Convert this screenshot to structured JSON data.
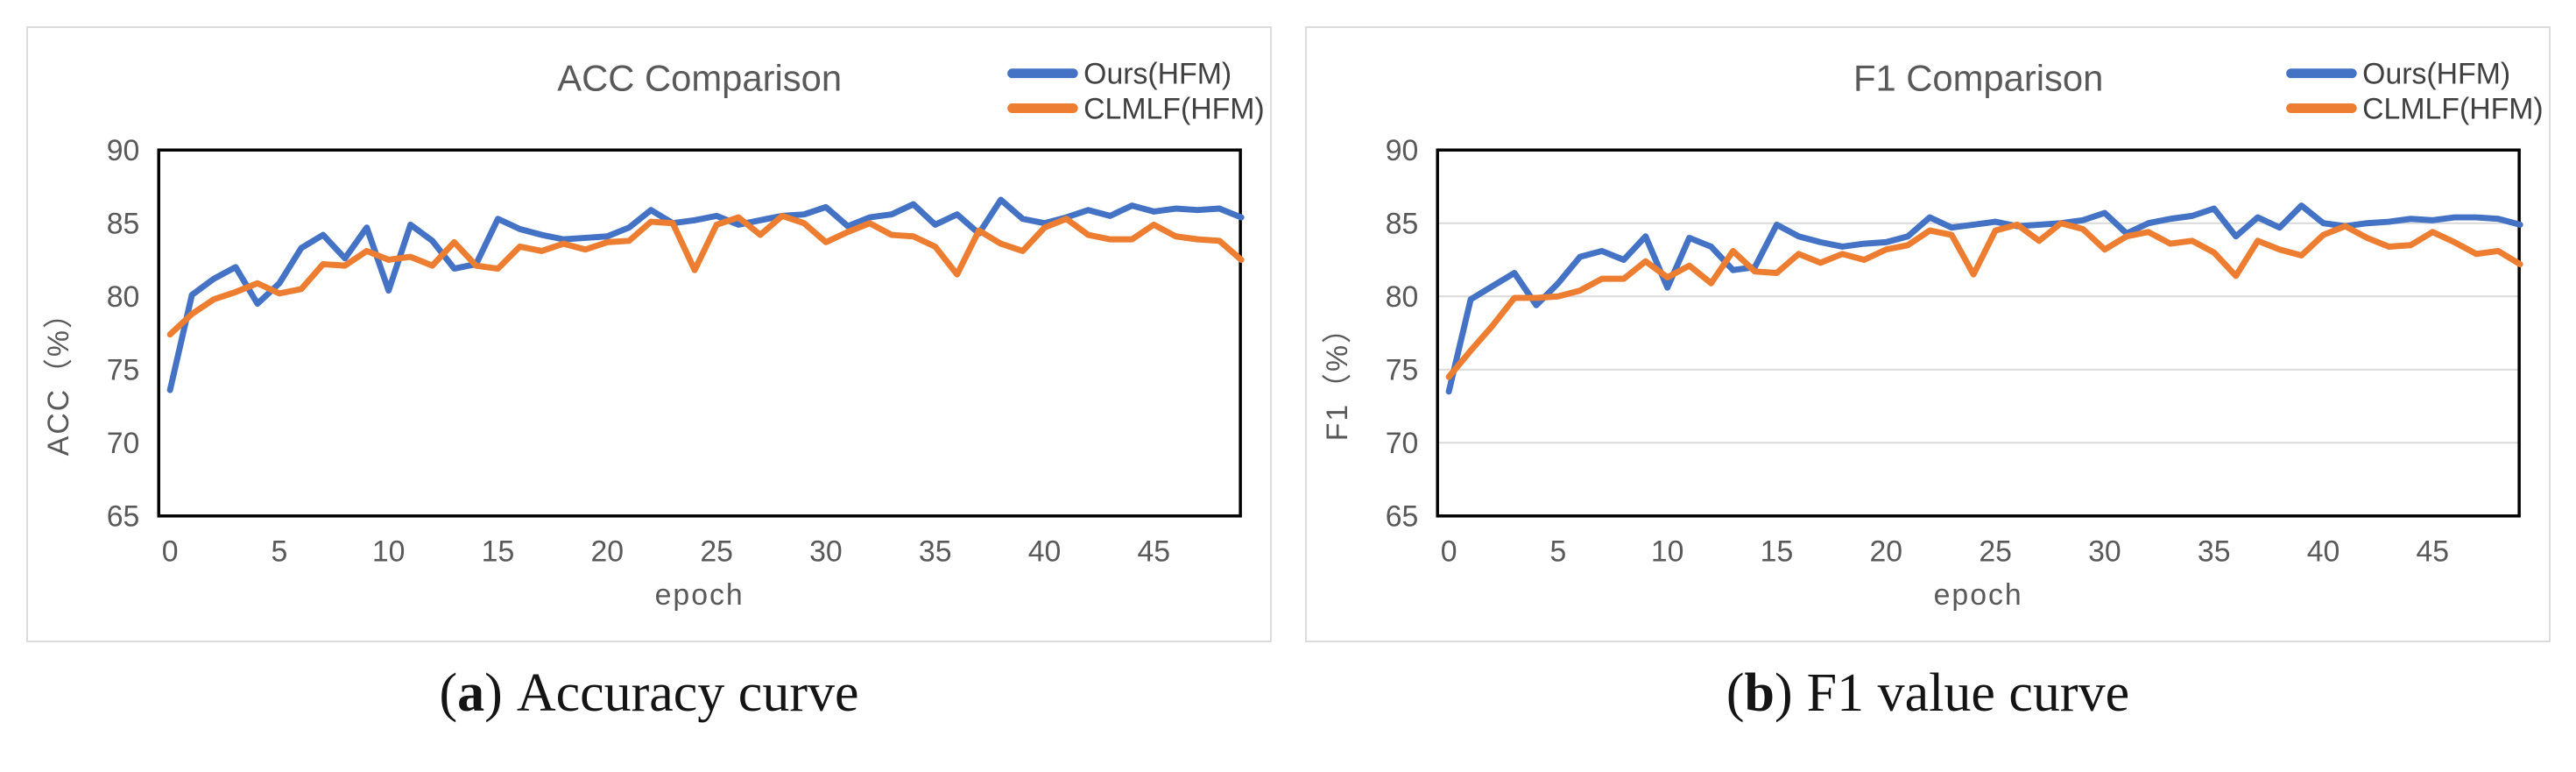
{
  "colors": {
    "blue": "#4472C4",
    "orange": "#ED7D31",
    "frame": "#000000",
    "gridline": "#D9D9D9",
    "axis_text": "#595959",
    "legend_text": "#404040",
    "card_border": "#DCDCDC"
  },
  "captions": [
    {
      "paren_open": "(",
      "letter": "a",
      "paren_close": ")",
      "text": "Accuracy curve"
    },
    {
      "paren_open": "(",
      "letter": "b",
      "paren_close": ")",
      "text": "F1 value curve"
    }
  ],
  "chart_data": [
    {
      "type": "line",
      "title": "ACC Comparison",
      "xlabel": "epoch",
      "ylabel": "ACC（%）",
      "x_start": 0,
      "xticks": [
        0,
        5,
        10,
        15,
        20,
        25,
        30,
        35,
        40,
        45
      ],
      "yticks": [
        65,
        70,
        75,
        80,
        85,
        90
      ],
      "ylim": [
        65,
        90
      ],
      "grid_values": [],
      "legend_position": "top-right",
      "series": [
        {
          "name": "Ours(HFM)",
          "color": "#4472C4",
          "values": [
            73.6,
            80.1,
            81.2,
            82.0,
            79.5,
            80.9,
            83.3,
            84.2,
            82.6,
            84.7,
            80.4,
            84.9,
            83.8,
            81.9,
            82.2,
            85.3,
            84.6,
            84.2,
            83.9,
            84.0,
            84.1,
            84.7,
            85.9,
            85.0,
            85.2,
            85.5,
            84.9,
            85.2,
            85.5,
            85.6,
            86.1,
            84.8,
            85.4,
            85.6,
            86.3,
            84.9,
            85.6,
            84.3,
            86.6,
            85.3,
            85.0,
            85.4,
            85.9,
            85.5,
            86.2,
            85.8,
            86.0,
            85.9,
            86.0,
            85.4
          ]
        },
        {
          "name": "CLMLF(HFM)",
          "color": "#ED7D31",
          "values": [
            77.4,
            78.8,
            79.8,
            80.3,
            80.9,
            80.2,
            80.5,
            82.2,
            82.1,
            83.1,
            82.5,
            82.7,
            82.1,
            83.7,
            82.1,
            81.9,
            83.4,
            83.1,
            83.6,
            83.2,
            83.7,
            83.8,
            85.1,
            85.0,
            81.8,
            84.9,
            85.4,
            84.2,
            85.5,
            85.0,
            83.7,
            84.4,
            85.0,
            84.2,
            84.1,
            83.4,
            81.5,
            84.5,
            83.6,
            83.1,
            84.7,
            85.3,
            84.2,
            83.9,
            83.9,
            84.9,
            84.1,
            83.9,
            83.8,
            82.5
          ]
        }
      ]
    },
    {
      "type": "line",
      "title": "F1 Comparison",
      "xlabel": "epoch",
      "ylabel": "F1（%）",
      "x_start": 0,
      "xticks": [
        0,
        5,
        10,
        15,
        20,
        25,
        30,
        35,
        40,
        45
      ],
      "yticks": [
        65,
        70,
        75,
        80,
        85,
        90
      ],
      "ylim": [
        65,
        90
      ],
      "grid_values": [
        70,
        75,
        80,
        85
      ],
      "legend_position": "top-right",
      "series": [
        {
          "name": "Ours(HFM)",
          "color": "#4472C4",
          "values": [
            73.5,
            79.8,
            80.7,
            81.6,
            79.4,
            80.9,
            82.7,
            83.1,
            82.5,
            84.1,
            80.6,
            84.0,
            83.4,
            81.8,
            82.0,
            84.9,
            84.1,
            83.7,
            83.4,
            83.6,
            83.7,
            84.1,
            85.4,
            84.7,
            84.9,
            85.1,
            84.8,
            84.9,
            85.0,
            85.2,
            85.7,
            84.3,
            85.0,
            85.3,
            85.5,
            86.0,
            84.1,
            85.4,
            84.7,
            86.2,
            85.0,
            84.8,
            85.0,
            85.1,
            85.3,
            85.2,
            85.4,
            85.4,
            85.3,
            84.9
          ]
        },
        {
          "name": "CLMLF(HFM)",
          "color": "#ED7D31",
          "values": [
            74.5,
            76.3,
            78.0,
            79.9,
            79.9,
            80.0,
            80.4,
            81.2,
            81.2,
            82.4,
            81.3,
            82.1,
            80.9,
            83.1,
            81.7,
            81.6,
            82.9,
            82.3,
            82.9,
            82.5,
            83.2,
            83.5,
            84.5,
            84.2,
            81.5,
            84.5,
            84.9,
            83.8,
            85.0,
            84.6,
            83.2,
            84.1,
            84.4,
            83.6,
            83.8,
            83.0,
            81.4,
            83.8,
            83.2,
            82.8,
            84.2,
            84.8,
            84.0,
            83.4,
            83.5,
            84.4,
            83.7,
            82.9,
            83.1,
            82.2
          ]
        }
      ]
    }
  ]
}
